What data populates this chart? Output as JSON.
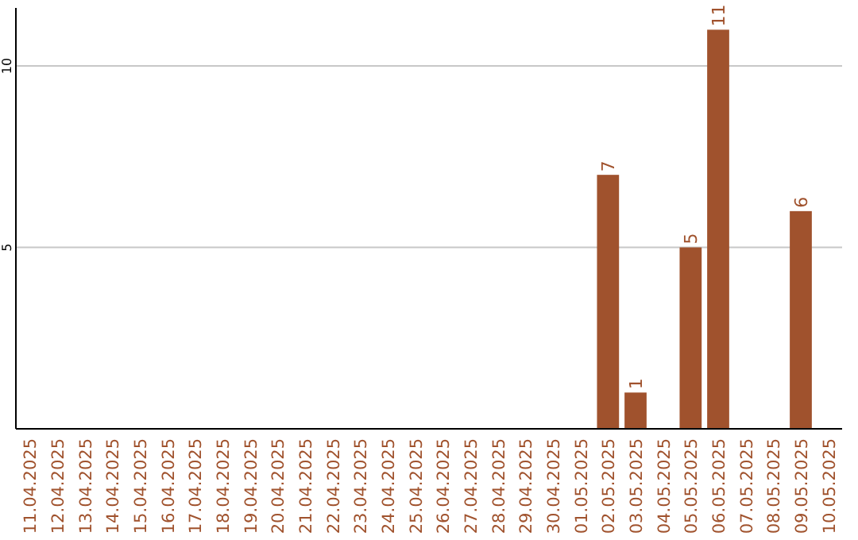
{
  "chart_data": {
    "type": "bar",
    "categories": [
      "11.04.2025",
      "12.04.2025",
      "13.04.2025",
      "14.04.2025",
      "15.04.2025",
      "16.04.2025",
      "17.04.2025",
      "18.04.2025",
      "19.04.2025",
      "20.04.2025",
      "21.04.2025",
      "22.04.2025",
      "23.04.2025",
      "24.04.2025",
      "25.04.2025",
      "26.04.2025",
      "27.04.2025",
      "28.04.2025",
      "29.04.2025",
      "30.04.2025",
      "01.05.2025",
      "02.05.2025",
      "03.05.2025",
      "04.05.2025",
      "05.05.2025",
      "06.05.2025",
      "07.05.2025",
      "08.05.2025",
      "09.05.2025",
      "10.05.2025"
    ],
    "values": [
      0,
      0,
      0,
      0,
      0,
      0,
      0,
      0,
      0,
      0,
      0,
      0,
      0,
      0,
      0,
      0,
      0,
      0,
      0,
      0,
      0,
      7,
      1,
      0,
      5,
      11,
      0,
      0,
      6,
      0
    ],
    "value_labels": [
      null,
      null,
      null,
      null,
      null,
      null,
      null,
      null,
      null,
      null,
      null,
      null,
      null,
      null,
      null,
      null,
      null,
      null,
      null,
      null,
      null,
      "7",
      "1",
      null,
      "5",
      "11",
      null,
      null,
      "6",
      null
    ],
    "color": "#a0522d",
    "ylim": [
      0,
      11.6
    ],
    "yticks": [
      5,
      10
    ],
    "grid": "y"
  }
}
